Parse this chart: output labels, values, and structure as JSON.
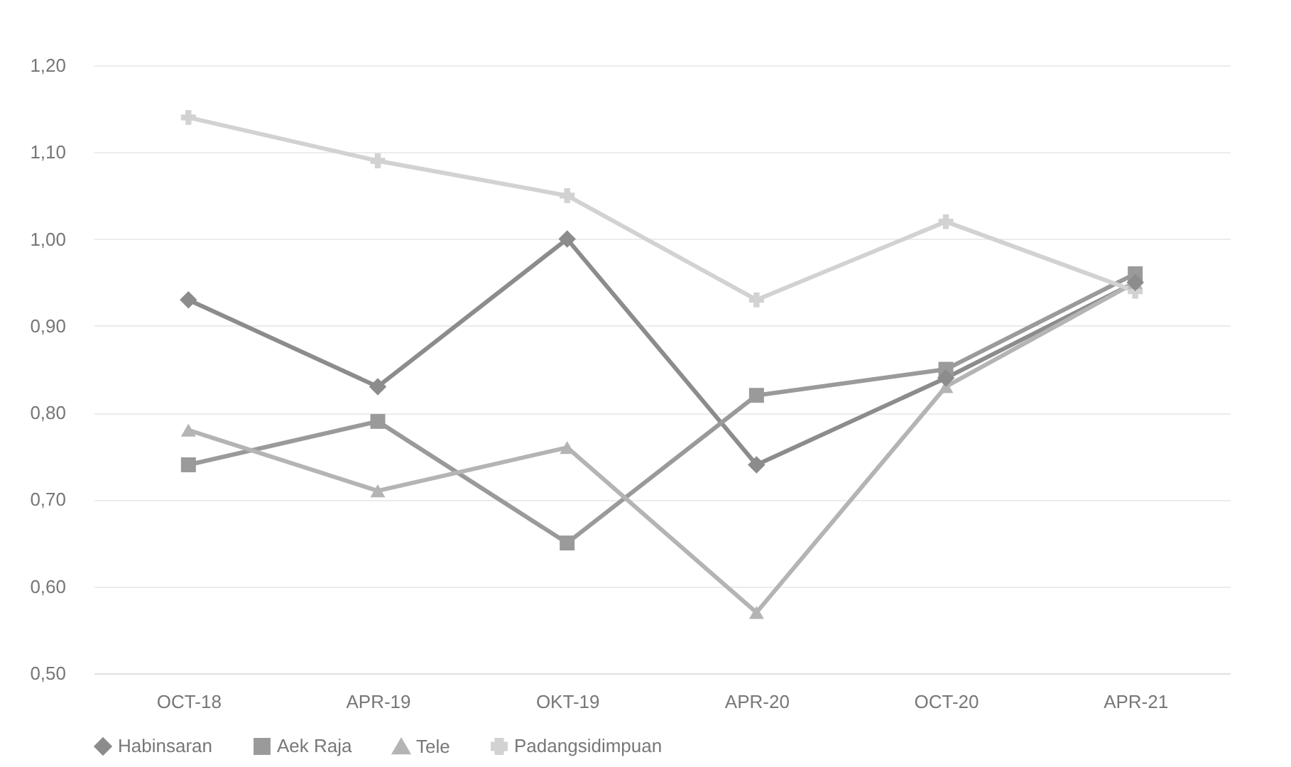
{
  "chart_data": {
    "type": "line",
    "categories": [
      "OCT-18",
      "APR-19",
      "OKT-19",
      "APR-20",
      "OCT-20",
      "APR-21"
    ],
    "series": [
      {
        "name": "Habinsaran",
        "color": "#8c8c8c",
        "marker": "diamond",
        "values": [
          0.93,
          0.83,
          1.0,
          0.74,
          0.84,
          0.95
        ]
      },
      {
        "name": "Aek Raja",
        "color": "#9a9a9a",
        "marker": "square",
        "values": [
          0.74,
          0.79,
          0.65,
          0.82,
          0.85,
          0.96
        ]
      },
      {
        "name": "Tele",
        "color": "#b4b4b4",
        "marker": "triangle",
        "values": [
          0.78,
          0.71,
          0.76,
          0.57,
          0.83,
          0.95
        ]
      },
      {
        "name": "Padangsidimpuan",
        "color": "#d2d2d2",
        "marker": "cross",
        "values": [
          1.14,
          1.09,
          1.05,
          0.93,
          1.02,
          0.94
        ]
      }
    ],
    "ylim": [
      0.5,
      1.2
    ],
    "yticks": [
      {
        "value": 0.5,
        "label": "0,50"
      },
      {
        "value": 0.6,
        "label": "0,60"
      },
      {
        "value": 0.7,
        "label": "0,70"
      },
      {
        "value": 0.8,
        "label": "0,80"
      },
      {
        "value": 0.9,
        "label": "0,90"
      },
      {
        "value": 1.0,
        "label": "1,00"
      },
      {
        "value": 1.1,
        "label": "1,10"
      },
      {
        "value": 1.2,
        "label": "1,20"
      }
    ],
    "grid": "y",
    "legend": "bottom"
  }
}
